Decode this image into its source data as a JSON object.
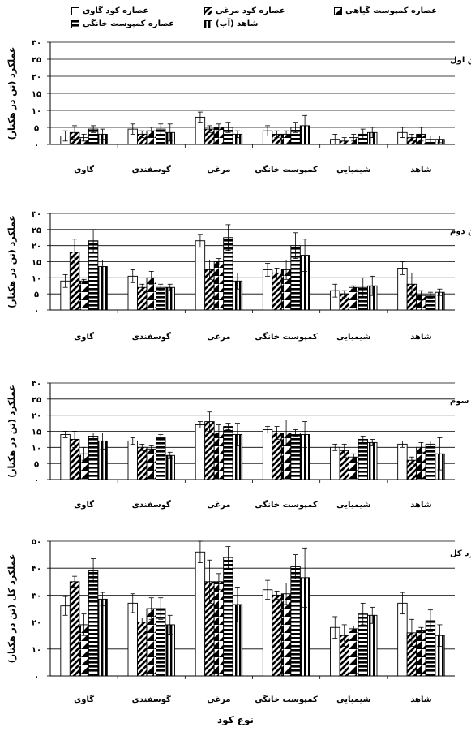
{
  "legend": [
    {
      "name": "عصاره کود گاوی",
      "pattern": "white"
    },
    {
      "name": "عصاره کود مرغی",
      "pattern": "diag"
    },
    {
      "name": "عصاره کمپوست گیاهی",
      "pattern": "black"
    },
    {
      "name": "عصاره کمپوست خانگی",
      "pattern": "hstripe"
    },
    {
      "name": "شاهد (آب)",
      "pattern": "vstripe"
    }
  ],
  "xlabel": "نوع کود",
  "chart_data": [
    {
      "type": "bar",
      "title": "(الف) عملکرد چین اول",
      "ylabel": "عملکرد (تن در هکتار)",
      "ylim": [
        0,
        30
      ],
      "yticks": [
        0,
        5,
        10,
        15,
        20,
        25,
        30
      ],
      "ytick_labels": [
        "۰",
        "۵",
        "۱۰",
        "۱۵",
        "۲۰",
        "۲۵",
        "۳۰"
      ],
      "categories": [
        "گاوی",
        "گوسفندی",
        "مرغی",
        "کمپوست خانگی",
        "شیمیایی",
        "شاهد"
      ],
      "series": [
        {
          "name": "عصاره کود گاوی",
          "values": [
            2.5,
            4.5,
            8,
            4,
            1.5,
            3.5
          ],
          "errors": [
            1.5,
            1.5,
            1.5,
            1.5,
            1.5,
            1.5
          ]
        },
        {
          "name": "عصاره کود مرغی",
          "values": [
            3.5,
            3,
            4.5,
            3,
            1,
            2
          ],
          "errors": [
            2,
            1,
            1,
            1,
            1,
            1
          ]
        },
        {
          "name": "عصاره کمپوست گیاهی",
          "values": [
            2,
            4,
            5,
            3,
            2,
            3
          ],
          "errors": [
            1,
            1,
            1,
            1,
            1,
            2
          ]
        },
        {
          "name": "عصاره کمپوست خانگی",
          "values": [
            4.5,
            4.5,
            5,
            5,
            3,
            1.5
          ],
          "errors": [
            1,
            1.5,
            1.5,
            1.5,
            1.5,
            1
          ]
        },
        {
          "name": "شاهد (آب)",
          "values": [
            3,
            3.5,
            3,
            5.5,
            3.5,
            1.5
          ],
          "errors": [
            1.5,
            2.5,
            1,
            3,
            1.5,
            1
          ]
        }
      ]
    },
    {
      "type": "bar",
      "title": "(ب) عملکرد چین دوم",
      "ylabel": "عملکرد (تن در هکتار)",
      "ylim": [
        0,
        30
      ],
      "yticks": [
        0,
        5,
        10,
        15,
        20,
        25,
        30
      ],
      "ytick_labels": [
        "۰",
        "۵",
        "۱۰",
        "۱۵",
        "۲۰",
        "۲۵",
        "۳۰"
      ],
      "categories": [
        "گاوی",
        "گوسفندی",
        "مرغی",
        "کمپوست خانگی",
        "شیمیایی",
        "شاهد"
      ],
      "series": [
        {
          "name": "عصاره کود گاوی",
          "values": [
            9,
            10.5,
            21.5,
            12.5,
            6,
            13
          ],
          "errors": [
            2,
            2,
            2,
            2,
            2,
            2
          ]
        },
        {
          "name": "عصاره کود مرغی",
          "values": [
            18,
            7,
            12.5,
            11.5,
            5,
            8
          ],
          "errors": [
            4,
            1,
            3,
            1.5,
            1,
            3.5
          ]
        },
        {
          "name": "عصاره کمپوست گیاهی",
          "values": [
            9,
            10,
            15,
            12.5,
            7,
            4.5
          ],
          "errors": [
            0.5,
            2,
            1,
            3,
            0.5,
            1.5
          ]
        },
        {
          "name": "عصاره کمپوست خانگی",
          "values": [
            21.5,
            7,
            22.5,
            20,
            7,
            4.5
          ],
          "errors": [
            3.5,
            1,
            4,
            4,
            3,
            1
          ]
        },
        {
          "name": "شاهد (آب)",
          "values": [
            13.5,
            7,
            9,
            17,
            7.5,
            5.5
          ],
          "errors": [
            2,
            1,
            2.5,
            5,
            3,
            1
          ]
        }
      ]
    },
    {
      "type": "bar",
      "title": "(ج) عملکرد چین سوم",
      "ylabel": "عملکرد (تن در هکتار)",
      "ylim": [
        0,
        30
      ],
      "yticks": [
        0,
        5,
        10,
        15,
        20,
        25,
        30
      ],
      "ytick_labels": [
        "۰",
        "۵",
        "۱۰",
        "۱۵",
        "۲۰",
        "۲۵",
        "۳۰"
      ],
      "categories": [
        "گاوی",
        "گوسفندی",
        "مرغی",
        "کمپوست خانگی",
        "شیمیایی",
        "شاهد"
      ],
      "series": [
        {
          "name": "عصاره کود گاوی",
          "values": [
            14,
            12,
            17,
            15.5,
            10,
            11
          ],
          "errors": [
            1,
            1,
            1,
            1,
            1,
            1
          ]
        },
        {
          "name": "عصاره کود مرغی",
          "values": [
            12.5,
            10,
            18,
            14.5,
            9,
            6
          ],
          "errors": [
            2.5,
            1,
            3,
            2,
            2,
            1
          ]
        },
        {
          "name": "عصاره کمپوست گیاهی",
          "values": [
            8,
            9.5,
            14.5,
            14.5,
            7,
            10
          ],
          "errors": [
            2,
            1,
            2.5,
            4,
            1,
            1.5
          ]
        },
        {
          "name": "عصاره کمپوست خانگی",
          "values": [
            13.5,
            13,
            16.5,
            14.5,
            12.5,
            11
          ],
          "errors": [
            1,
            1,
            1,
            1,
            1,
            1
          ]
        },
        {
          "name": "شاهد (آب)",
          "values": [
            12,
            7.5,
            14,
            14,
            11.5,
            8
          ],
          "errors": [
            2.5,
            1,
            3.5,
            4,
            1,
            5
          ]
        }
      ]
    },
    {
      "type": "bar",
      "title": "(د) عملکرد کل",
      "ylabel": "عملکرد کل (تن در هکتار)",
      "ylim": [
        0,
        50
      ],
      "yticks": [
        0,
        10,
        20,
        30,
        40,
        50
      ],
      "ytick_labels": [
        "۰",
        "۱۰",
        "۲۰",
        "۳۰",
        "۴۰",
        "۵۰"
      ],
      "categories": [
        "گاوی",
        "گوسفندی",
        "مرغی",
        "کمپوست خانگی",
        "شیمیایی",
        "شاهد"
      ],
      "series": [
        {
          "name": "عصاره کود گاوی",
          "values": [
            26,
            27,
            46,
            32,
            18,
            27
          ],
          "errors": [
            3.5,
            3.5,
            4,
            3.5,
            4,
            4
          ]
        },
        {
          "name": "عصاره کود مرغی",
          "values": [
            35,
            20,
            35,
            30,
            15,
            16
          ],
          "errors": [
            2,
            1.5,
            8,
            1.5,
            4,
            5
          ]
        },
        {
          "name": "عصاره کمپوست گیاهی",
          "values": [
            19,
            25,
            35,
            30.5,
            17.5,
            17
          ],
          "errors": [
            4,
            4,
            3,
            4,
            1,
            1
          ]
        },
        {
          "name": "عصاره کمپوست خانگی",
          "values": [
            39,
            25,
            44,
            40.5,
            23,
            20.5
          ],
          "errors": [
            4.5,
            4,
            4,
            4.5,
            4,
            4
          ]
        },
        {
          "name": "شاهد (آب)",
          "values": [
            28.5,
            19,
            26.5,
            36.5,
            22.5,
            15
          ],
          "errors": [
            2.5,
            3.5,
            6.5,
            11,
            3,
            4
          ]
        }
      ]
    }
  ]
}
